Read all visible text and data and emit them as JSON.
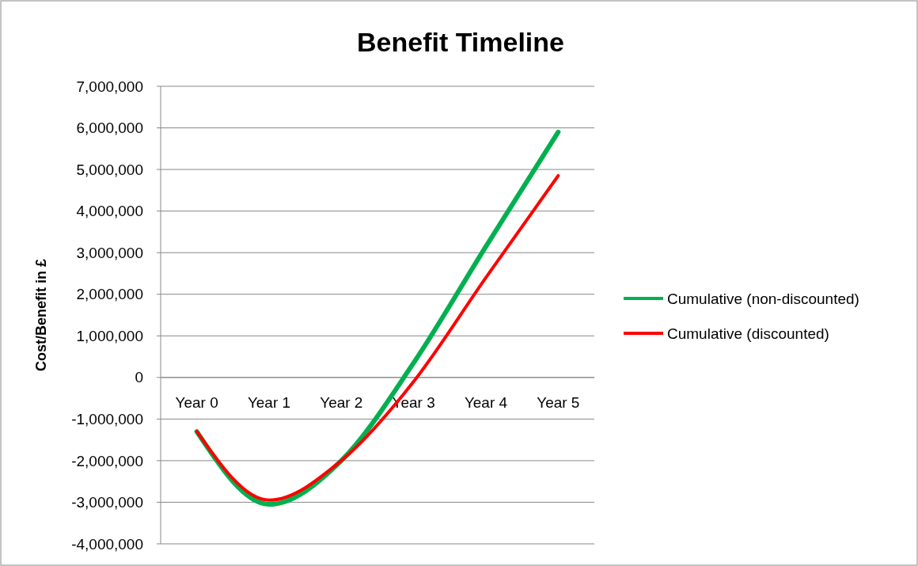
{
  "chart_data": {
    "type": "line",
    "title": "Benefit Timeline",
    "ylabel": "Cost/Benefit in £",
    "categories": [
      "Year 0",
      "Year 1",
      "Year 2",
      "Year 3",
      "Year 4",
      "Year 5"
    ],
    "series": [
      {
        "name": "Cumulative (non-discounted)",
        "color": "#00b050",
        "values": [
          -1300000,
          -3050000,
          -2000000,
          350000,
          3150000,
          5900000
        ]
      },
      {
        "name": "Cumulative (discounted)",
        "color": "#ff0000",
        "values": [
          -1300000,
          -2950000,
          -2000000,
          -100000,
          2400000,
          4850000
        ]
      }
    ],
    "ylim": [
      -4000000,
      7000000
    ],
    "yticks": [
      {
        "value": -4000000,
        "label": "-4,000,000"
      },
      {
        "value": -3000000,
        "label": "-3,000,000"
      },
      {
        "value": -2000000,
        "label": "-2,000,000"
      },
      {
        "value": -1000000,
        "label": "-1,000,000"
      },
      0,
      {
        "value": 1000000,
        "label": "1,000,000"
      },
      {
        "value": 2000000,
        "label": "2,000,000"
      },
      {
        "value": 3000000,
        "label": "3,000,000"
      },
      {
        "value": 4000000,
        "label": "4,000,000"
      },
      {
        "value": 5000000,
        "label": "5,000,000"
      },
      {
        "value": 6000000,
        "label": "6,000,000"
      },
      {
        "value": 7000000,
        "label": "7,000,000"
      }
    ],
    "grid": "y",
    "legend": "right",
    "marker": "none",
    "line_style": "solid"
  }
}
